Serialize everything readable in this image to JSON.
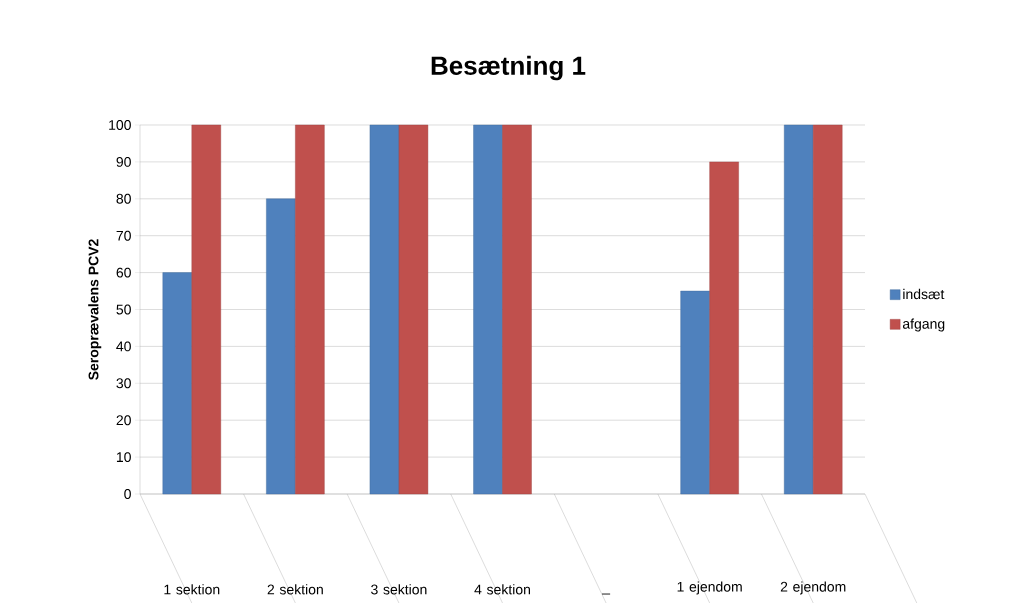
{
  "chart_data": {
    "type": "bar",
    "title": "Besætning 1",
    "ylabel": "Seroprævalens PCV2",
    "categories": [
      "1 sektion",
      "2 sektion",
      "3 sektion",
      "4 sektion",
      "_",
      "1 ejendom",
      "2 ejendom"
    ],
    "series": [
      {
        "name": "indsæt",
        "color": "#4f81bd",
        "values": [
          60,
          80,
          100,
          100,
          null,
          55,
          100
        ]
      },
      {
        "name": "afgang",
        "color": "#c0504d",
        "values": [
          100,
          100,
          100,
          100,
          null,
          90,
          100
        ]
      }
    ],
    "ylim": [
      0,
      100
    ],
    "yticks": [
      0,
      10,
      20,
      30,
      40,
      50,
      60,
      70,
      80,
      90,
      100
    ],
    "grid": "y",
    "legend": "right"
  }
}
